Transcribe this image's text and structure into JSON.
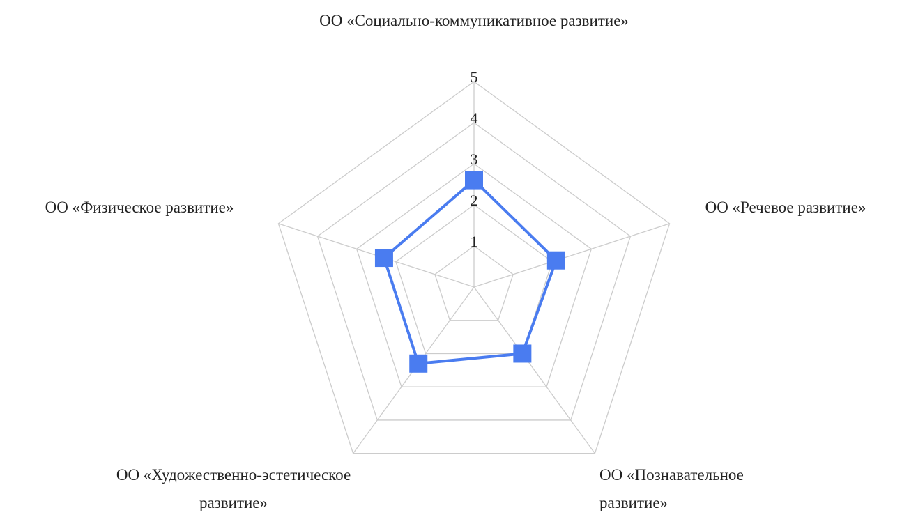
{
  "chart_data": {
    "type": "radar",
    "categories": [
      "ОО «Социально-коммуникативное развитие»",
      "ОО «Речевое развитие»",
      "ОО «Познавательное развитие»",
      "ОО «Художественно-эстетическое развитие»",
      "ОО «Физическое развитие»"
    ],
    "series": [
      {
        "color": "#4a7cf0",
        "values": [
          2.6,
          2.1,
          2.0,
          2.3,
          2.3
        ]
      }
    ],
    "rlim": [
      0,
      5
    ],
    "rticks": [
      1,
      2,
      3,
      4,
      5
    ],
    "grid": true
  }
}
